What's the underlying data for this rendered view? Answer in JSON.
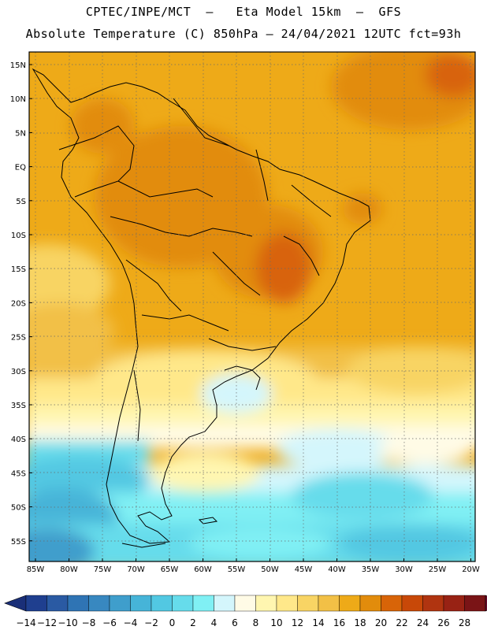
{
  "header": {
    "line1": "CPTEC/INPE/MCT  –   Eta Model 15km  –  GFS",
    "line2": "Absolute Temperature (C) 850hPa – 24/04/2021 12UTC fct=93h"
  },
  "map": {
    "lat_labels": [
      "15N",
      "10N",
      "5N",
      "EQ",
      "5S",
      "10S",
      "15S",
      "20S",
      "25S",
      "30S",
      "35S",
      "40S",
      "45S",
      "50S",
      "55S"
    ],
    "lon_labels": [
      "85W",
      "80W",
      "75W",
      "70W",
      "65W",
      "60W",
      "55W",
      "50W",
      "45W",
      "40W",
      "35W",
      "30W",
      "25W",
      "20W"
    ],
    "lat_range": [
      -58,
      16.5
    ],
    "lon_range": [
      -86,
      -19.5
    ],
    "gridlines": true
  },
  "colorbar": {
    "labels": [
      "-14",
      "-12",
      "-10",
      "-8",
      "-6",
      "-4",
      "-2",
      "0",
      "2",
      "4",
      "6",
      "8",
      "10",
      "12",
      "14",
      "16",
      "18",
      "20",
      "22",
      "24",
      "26",
      "28"
    ],
    "colors": [
      "#1f3f8f",
      "#2a5aa3",
      "#2f74b4",
      "#3888c0",
      "#3f9ecc",
      "#46b4d8",
      "#52c8e2",
      "#66dceb",
      "#80f0f4",
      "#d4f6fc",
      "#fffbe6",
      "#fff6b0",
      "#ffe88a",
      "#f8d464",
      "#f2c046",
      "#eeaa18",
      "#e28c0c",
      "#d86408",
      "#c84808",
      "#b03410",
      "#982214",
      "#7a1416"
    ],
    "under_color": "#1a2f78",
    "over_color": "#6a0a2a"
  }
}
